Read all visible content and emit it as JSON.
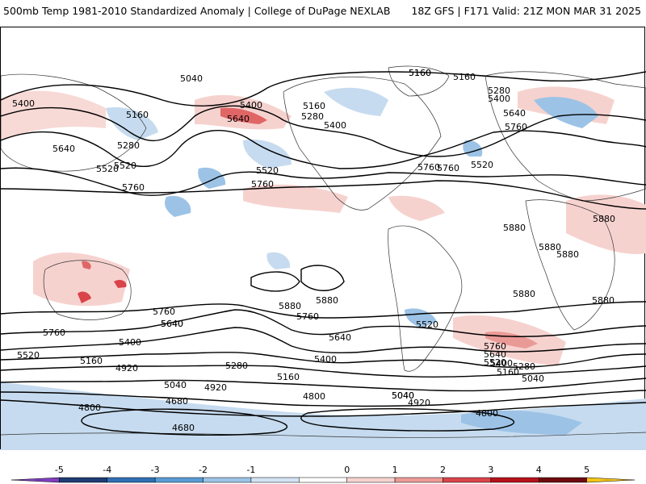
{
  "header": {
    "left_title": "500mb Temp 1981-2010 Standardized Anomaly | College of DuPage NEXLAB",
    "right_title": "18Z GFS | F171 Valid: 21Z MON MAR 31 2025"
  },
  "colors": {
    "cold_strong": "#2a4fa3",
    "cold": "#6fa8dc",
    "cold_light": "#c6dbef",
    "warm_light": "#f4c7c3",
    "warm": "#e06666",
    "warm_strong": "#b7141a",
    "contour": "#000000",
    "land_outline": "#333333"
  },
  "contour_labels": [
    "5040",
    "5160",
    "5400",
    "5160",
    "5280",
    "5520",
    "5640",
    "5760",
    "5400",
    "5640",
    "5160",
    "5280",
    "5400",
    "5520",
    "5760",
    "5160",
    "5160",
    "5280",
    "5400",
    "5640",
    "5760",
    "5520",
    "5760",
    "5880",
    "5880",
    "5880",
    "5880",
    "5880",
    "5880",
    "5880",
    "5760",
    "5640",
    "5760",
    "5760",
    "5640",
    "5520",
    "5400",
    "5280",
    "5160",
    "5040",
    "4920",
    "5400",
    "5520",
    "5160",
    "4920",
    "5040",
    "4680",
    "4800",
    "4680",
    "4800",
    "5040",
    "4920",
    "5760",
    "5640",
    "5520",
    "5400",
    "5280",
    "5160",
    "5040",
    "4800",
    "5640",
    "5520",
    "5760",
    "5880"
  ],
  "colorbar": {
    "ticks": [
      "-5",
      "-4",
      "-3",
      "-2",
      "-1",
      "0",
      "1",
      "2",
      "3",
      "4",
      "5"
    ],
    "colors": [
      "#7f3fbf",
      "#1f3b73",
      "#2f6fb3",
      "#5a9bd5",
      "#9cc3e6",
      "#d3e3f3",
      "#ffffff",
      "#f6d2cf",
      "#ea9a96",
      "#d9444a",
      "#b5121b",
      "#6e0a0f",
      "#f5c518"
    ]
  }
}
